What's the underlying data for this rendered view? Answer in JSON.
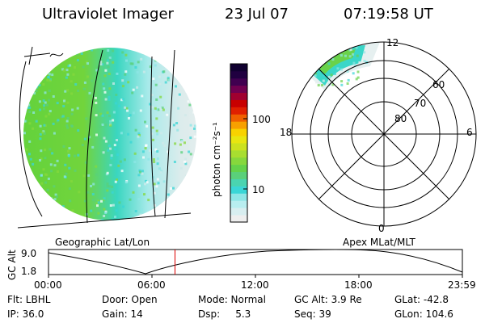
{
  "header": {
    "instrument": "Ultraviolet Imager",
    "date": "23 Jul 07",
    "time": "07:19:58 UT"
  },
  "colorbar": {
    "unit_label": "photon cm⁻²s⁻¹",
    "ticks": [
      "100",
      "10"
    ],
    "colors": [
      "#eeeeee",
      "#d8eef0",
      "#b8eef0",
      "#8ee6e6",
      "#3ad6d6",
      "#4ad4b0",
      "#5ad07a",
      "#64d24a",
      "#86d83c",
      "#a8de30",
      "#cce21e",
      "#e8e610",
      "#f8d200",
      "#f8a000",
      "#f06000",
      "#e02000",
      "#c80000",
      "#a00030",
      "#700050",
      "#400050",
      "#200040",
      "#100030"
    ]
  },
  "left_panel": {
    "caption": "Geographic Lat/Lon"
  },
  "polar_panel": {
    "caption": "Apex MLat/MLT",
    "mlt_labels": {
      "top": "12",
      "right": "6",
      "bottom": "0",
      "left": "18"
    },
    "lat_labels": [
      "60",
      "70",
      "80"
    ]
  },
  "altitude_plot": {
    "ylabel": "GC Alt",
    "y_ticks": [
      "9.0",
      "1.8"
    ],
    "x_ticks": [
      "00:00",
      "06:00",
      "12:00",
      "18:00",
      "23:59"
    ],
    "marker_time": "07:19:58",
    "marker_color": "#dd0000"
  },
  "info": {
    "flt": "Flt: LBHL",
    "ip": "IP: 36.0",
    "door": "Door: Open",
    "gain": "Gain: 14",
    "mode": "Mode: Normal",
    "dsp": "Dsp:     5.3",
    "gcalt": "GC Alt: 3.9 Re",
    "seq": "Seq: 39",
    "glat": "GLat: -42.8",
    "glon": "GLon: 104.6"
  }
}
